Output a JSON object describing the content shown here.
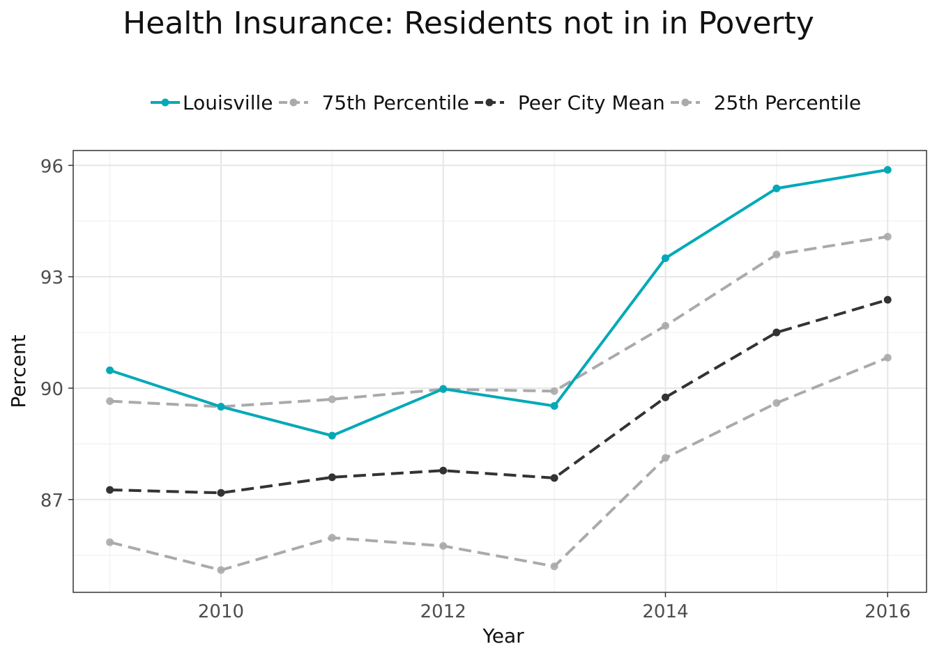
{
  "chart_data": {
    "type": "line",
    "title": "Health Insurance: Residents not in in Poverty",
    "xlabel": "Year",
    "ylabel": "Percent",
    "x": [
      2009,
      2010,
      2011,
      2012,
      2013,
      2014,
      2015,
      2016
    ],
    "xticks": [
      "2010",
      "2012",
      "2014",
      "2016"
    ],
    "yticks": [
      "87",
      "90",
      "93",
      "96"
    ],
    "xlim": [
      2008.67,
      2016.35
    ],
    "ylim": [
      84.5,
      96.4
    ],
    "grid": true,
    "legend_position": "top",
    "series": [
      {
        "name": "Louisville",
        "color": "#00a9b7",
        "dash": "solid",
        "values": [
          90.48,
          89.5,
          88.72,
          89.98,
          89.52,
          93.5,
          95.38,
          95.88
        ]
      },
      {
        "name": "75th Percentile",
        "color": "#aaaaaa",
        "dash": "dashed",
        "values": [
          89.65,
          89.5,
          89.7,
          89.97,
          89.92,
          91.68,
          93.6,
          94.08
        ]
      },
      {
        "name": "Peer City Mean",
        "color": "#333333",
        "dash": "dashed",
        "values": [
          87.26,
          87.18,
          87.6,
          87.78,
          87.58,
          89.75,
          91.5,
          92.38
        ]
      },
      {
        "name": "25th Percentile",
        "color": "#aaaaaa",
        "dash": "dashed",
        "values": [
          85.85,
          85.1,
          85.97,
          85.75,
          85.2,
          88.12,
          89.6,
          90.82
        ]
      }
    ]
  }
}
